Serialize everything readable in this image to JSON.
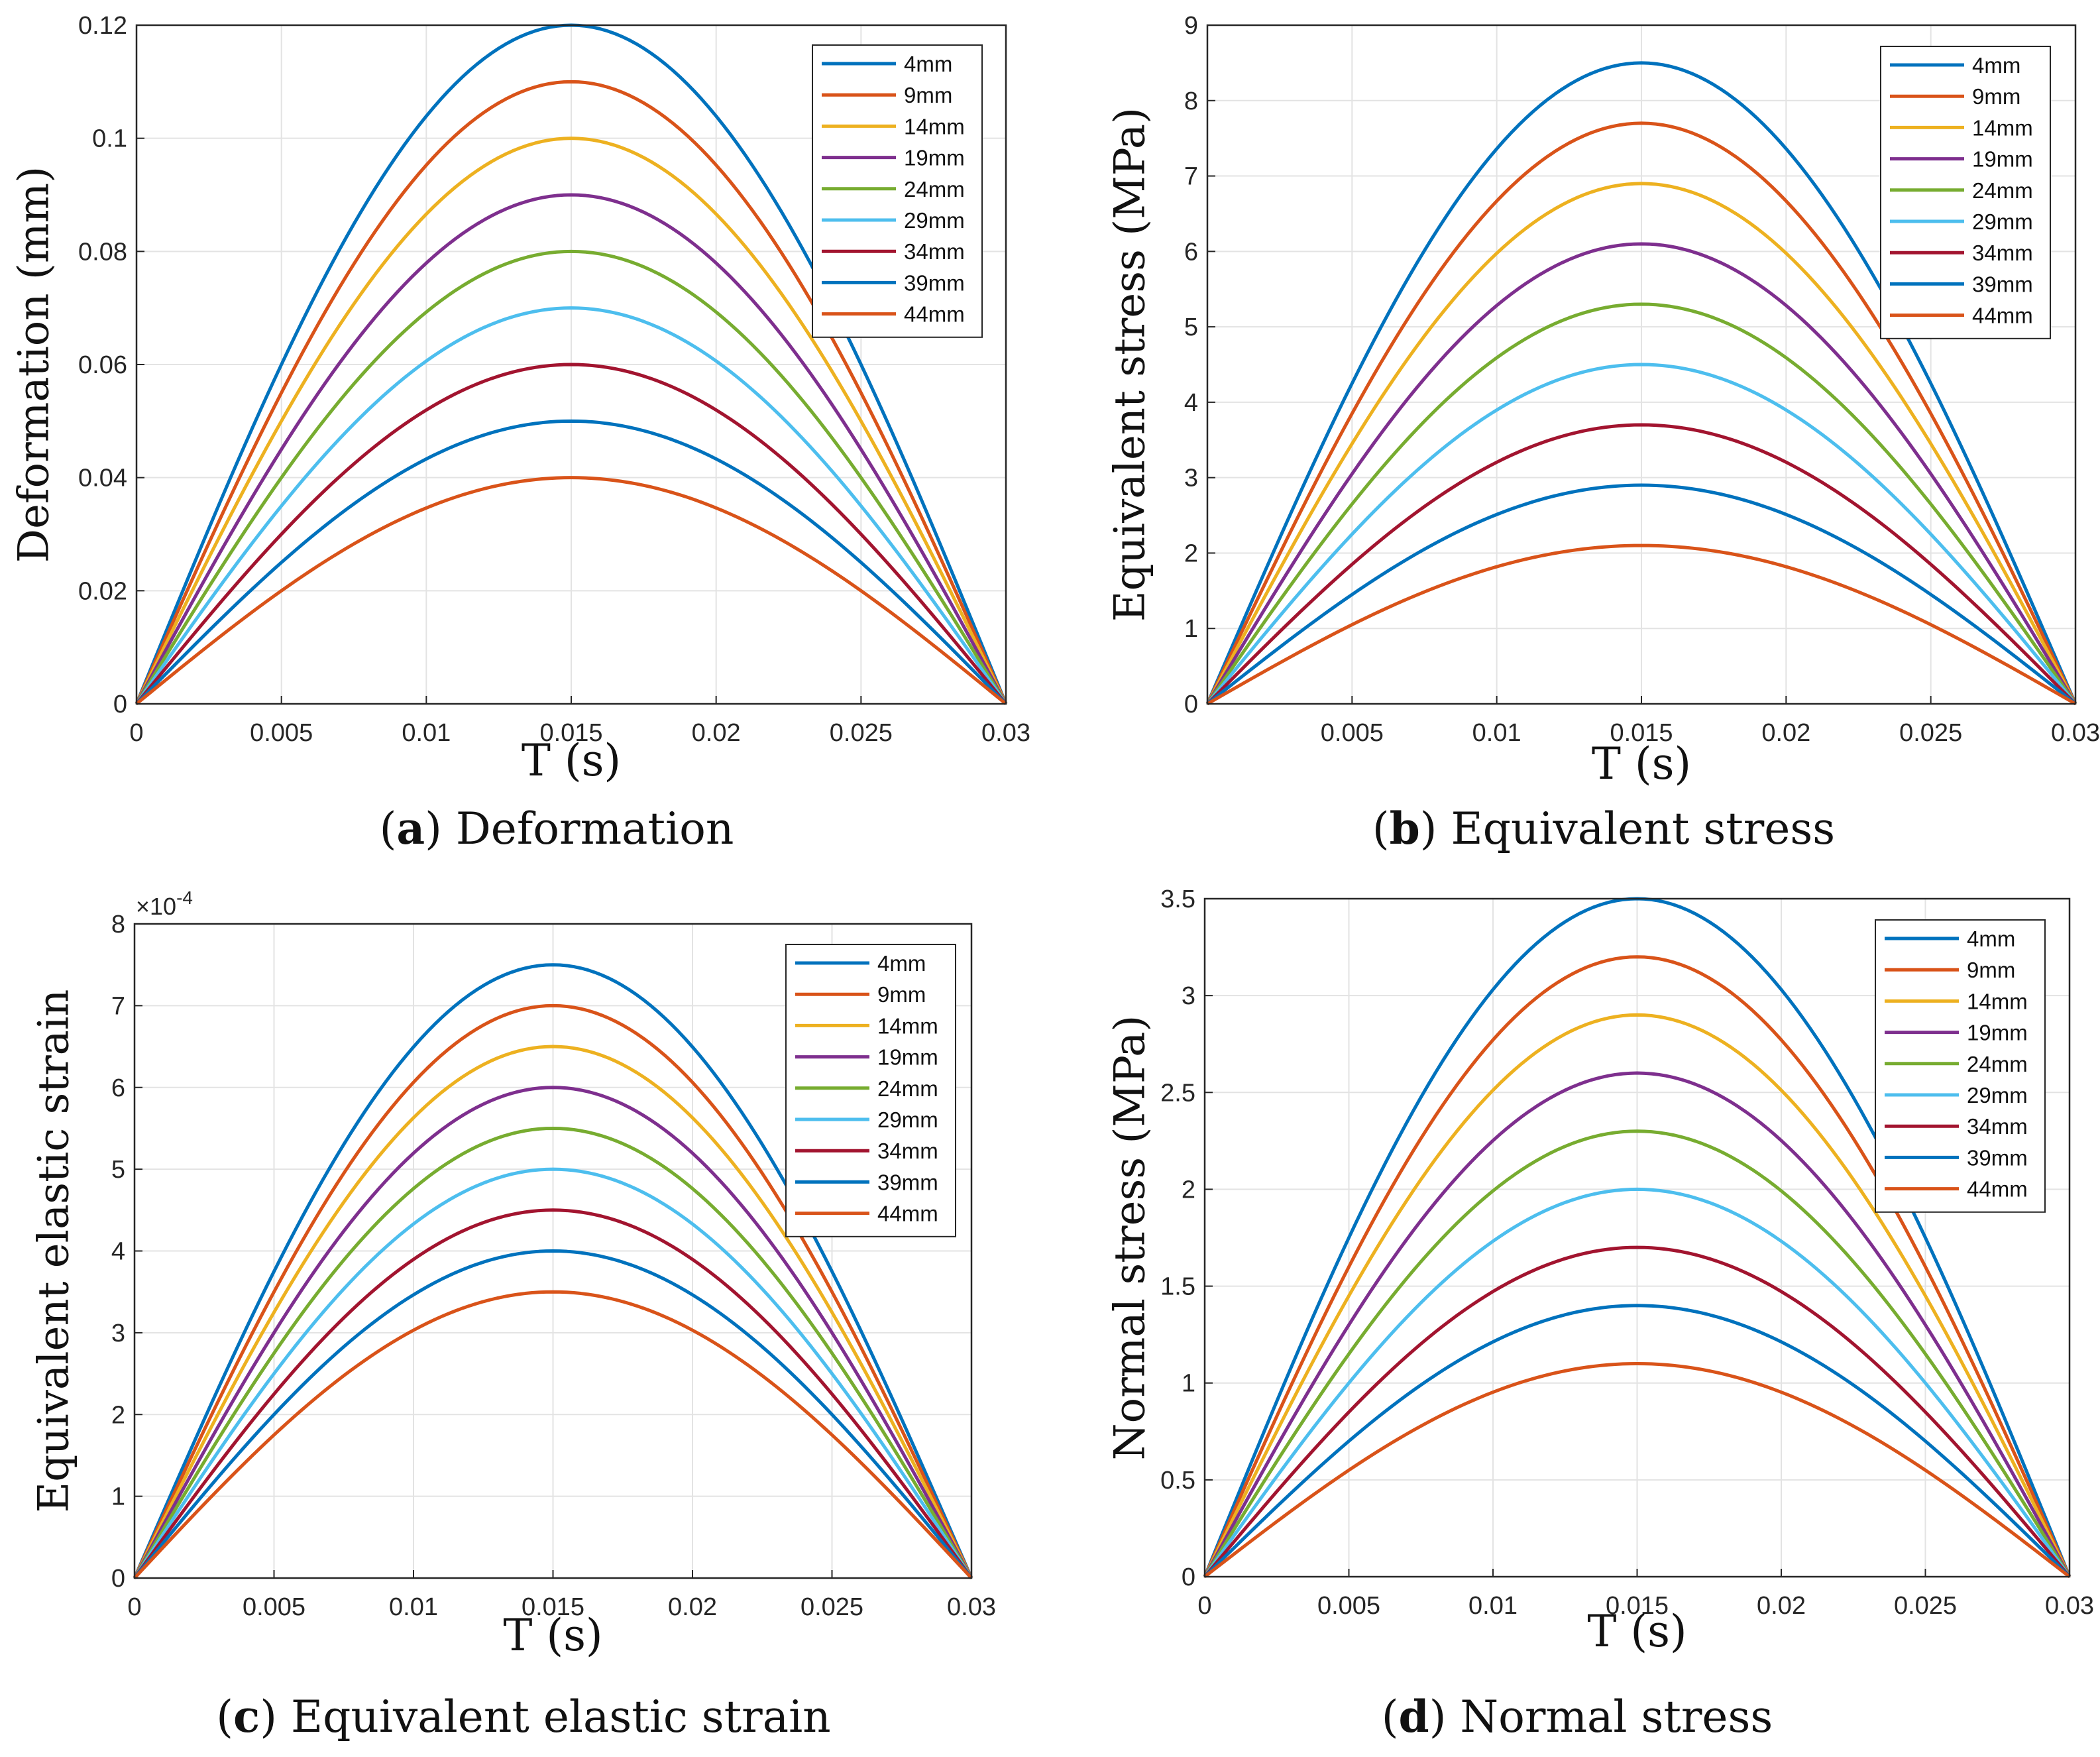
{
  "figure": {
    "series_names": [
      "4mm",
      "9mm",
      "14mm",
      "19mm",
      "24mm",
      "29mm",
      "34mm",
      "39mm",
      "44mm"
    ],
    "colors": [
      "#0072BD",
      "#D95319",
      "#EDB120",
      "#7E2F8E",
      "#77AC30",
      "#4DBEEE",
      "#A2142F",
      "#0072BD",
      "#D95319"
    ],
    "x_label": "T (s)"
  },
  "chart_data": [
    {
      "type": "line",
      "panel_letter": "a",
      "caption": "Deformation",
      "ylabel": "Deformation (mm)",
      "xlabel": "T (s)",
      "xlim": [
        0,
        0.03
      ],
      "ylim": [
        0,
        0.12
      ],
      "x_ticks": [
        "0",
        "0.005",
        "0.01",
        "0.015",
        "0.02",
        "0.025",
        "0.03"
      ],
      "y_ticks": [
        "0",
        "0.02",
        "0.04",
        "0.06",
        "0.08",
        "0.1",
        "0.12"
      ],
      "y_tick_values": [
        0,
        0.02,
        0.04,
        0.06,
        0.08,
        0.1,
        0.12
      ],
      "exponent_label": "",
      "series": [
        {
          "name": "4mm",
          "peak": 0.12
        },
        {
          "name": "9mm",
          "peak": 0.11
        },
        {
          "name": "14mm",
          "peak": 0.1
        },
        {
          "name": "19mm",
          "peak": 0.09
        },
        {
          "name": "24mm",
          "peak": 0.08
        },
        {
          "name": "29mm",
          "peak": 0.07
        },
        {
          "name": "34mm",
          "peak": 0.06
        },
        {
          "name": "39mm",
          "peak": 0.05
        },
        {
          "name": "44mm",
          "peak": 0.04
        }
      ]
    },
    {
      "type": "line",
      "panel_letter": "b",
      "caption": "Equivalent stress",
      "ylabel": "Equivalent stress (MPa)",
      "xlabel": "T (s)",
      "xlim": [
        0,
        0.03
      ],
      "ylim": [
        0,
        9
      ],
      "x_ticks": [
        "0.005",
        "0.01",
        "0.015",
        "0.02",
        "0.025",
        "0.03"
      ],
      "y_ticks": [
        "0",
        "1",
        "2",
        "3",
        "4",
        "5",
        "6",
        "7",
        "8",
        "9"
      ],
      "y_tick_values": [
        0,
        1,
        2,
        3,
        4,
        5,
        6,
        7,
        8,
        9
      ],
      "exponent_label": "",
      "series": [
        {
          "name": "4mm",
          "peak": 8.5
        },
        {
          "name": "9mm",
          "peak": 7.7
        },
        {
          "name": "14mm",
          "peak": 6.9
        },
        {
          "name": "19mm",
          "peak": 6.1
        },
        {
          "name": "24mm",
          "peak": 5.3
        },
        {
          "name": "29mm",
          "peak": 4.5
        },
        {
          "name": "34mm",
          "peak": 3.7
        },
        {
          "name": "39mm",
          "peak": 2.9
        },
        {
          "name": "44mm",
          "peak": 2.1
        }
      ]
    },
    {
      "type": "line",
      "panel_letter": "c",
      "caption": "Equivalent elastic strain",
      "ylabel": "Equivalent elastic strain",
      "xlabel": "T (s)",
      "xlim": [
        0,
        0.03
      ],
      "ylim": [
        0,
        8
      ],
      "x_ticks": [
        "0",
        "0.005",
        "0.01",
        "0.015",
        "0.02",
        "0.025",
        "0.03"
      ],
      "y_ticks": [
        "0",
        "1",
        "2",
        "3",
        "4",
        "5",
        "6",
        "7",
        "8"
      ],
      "y_tick_values": [
        0,
        1,
        2,
        3,
        4,
        5,
        6,
        7,
        8
      ],
      "exponent_label": "×10",
      "exponent_power": "-4",
      "series": [
        {
          "name": "4mm",
          "peak": 7.5
        },
        {
          "name": "9mm",
          "peak": 7.0
        },
        {
          "name": "14mm",
          "peak": 6.5
        },
        {
          "name": "19mm",
          "peak": 6.0
        },
        {
          "name": "24mm",
          "peak": 5.5
        },
        {
          "name": "29mm",
          "peak": 5.0
        },
        {
          "name": "34mm",
          "peak": 4.5
        },
        {
          "name": "39mm",
          "peak": 4.0
        },
        {
          "name": "44mm",
          "peak": 3.5
        }
      ]
    },
    {
      "type": "line",
      "panel_letter": "d",
      "caption": "Normal stress",
      "ylabel": "Normal stress (MPa)",
      "xlabel": "T (s)",
      "xlim": [
        0,
        0.03
      ],
      "ylim": [
        0,
        3.5
      ],
      "x_ticks": [
        "0",
        "0.005",
        "0.01",
        "0.015",
        "0.02",
        "0.025",
        "0.03"
      ],
      "y_ticks": [
        "0",
        "0.5",
        "1",
        "1.5",
        "2",
        "2.5",
        "3",
        "3.5"
      ],
      "y_tick_values": [
        0,
        0.5,
        1,
        1.5,
        2,
        2.5,
        3,
        3.5
      ],
      "exponent_label": "",
      "series": [
        {
          "name": "4mm",
          "peak": 3.5
        },
        {
          "name": "9mm",
          "peak": 3.2
        },
        {
          "name": "14mm",
          "peak": 2.9
        },
        {
          "name": "19mm",
          "peak": 2.6
        },
        {
          "name": "24mm",
          "peak": 2.3
        },
        {
          "name": "29mm",
          "peak": 2.0
        },
        {
          "name": "34mm",
          "peak": 1.7
        },
        {
          "name": "39mm",
          "peak": 1.4
        },
        {
          "name": "44mm",
          "peak": 1.1
        }
      ]
    }
  ]
}
